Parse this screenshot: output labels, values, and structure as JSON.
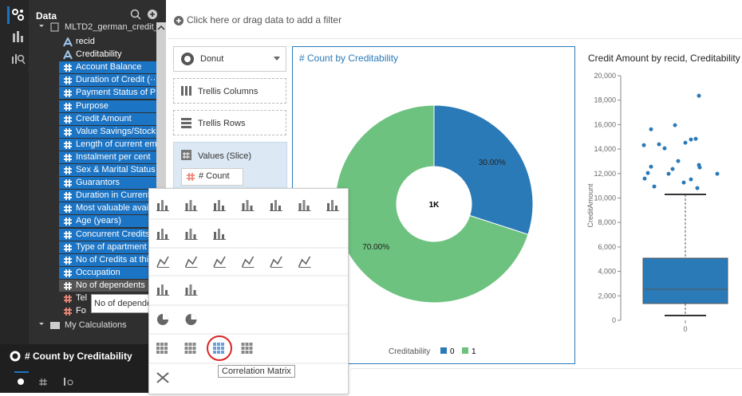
{
  "sidebar": {
    "title": "Data",
    "dataset": "MLTD2_german_credit_···",
    "attributes": [
      "recid",
      "Creditability"
    ],
    "selected_measures": [
      "Account Balance",
      "Duration of Credit (···",
      "Payment Status of P···",
      "Purpose",
      "Credit Amount",
      "Value Savings/Stocks",
      "Length of current em···",
      "Instalment per cent",
      "Sex & Marital Status",
      "Guarantors",
      "Duration in Current a",
      "Most valuable availa·",
      "Age (years)",
      "Concurrent Credits",
      "Type of apartment",
      "No of Credits at this ·",
      "Occupation"
    ],
    "hovered_item": "No of dependents",
    "other_items": [
      "Tel",
      "Fo"
    ],
    "folder": "My Calculations",
    "tooltip": "No of dependents",
    "panel_title": "# Count by Creditability"
  },
  "filter_bar": {
    "text": "Click here or drag data to add a filter"
  },
  "grammar": {
    "chart_type": "Donut",
    "trellis_columns": "Trellis Columns",
    "trellis_rows": "Trellis Rows",
    "values_title": "Values (Slice)",
    "values_item": "# Count"
  },
  "menu": {
    "tooltip": "Correlation Matrix"
  },
  "donut": {
    "type": "pie",
    "title": "# Count by Creditability",
    "center_label": "1K",
    "categories": [
      "0",
      "1"
    ],
    "values": [
      30,
      70
    ],
    "value_labels": [
      "30.00%",
      "70.00%"
    ],
    "colors": [
      "#2a7ab8",
      "#6cc27e"
    ],
    "legend_title": "Creditability"
  },
  "boxplot": {
    "type": "box",
    "title": "Credit Amount by recid, Creditability",
    "y_label": "CreditAmount",
    "categories": [
      "0"
    ],
    "color": "#2a7ab8",
    "ylim": [
      0,
      20000
    ],
    "yticks": [
      0,
      {
        "value": 2000,
        "label": "2,000"
      },
      {
        "value": 4000,
        "label": "4,000"
      },
      {
        "value": 6000,
        "label": "6,000"
      },
      {
        "value": 8000,
        "label": "8,000"
      },
      {
        "value": 10000,
        "label": "10,000"
      },
      {
        "value": 12000,
        "label": "12,000"
      },
      {
        "value": 14000,
        "label": "14,000"
      },
      {
        "value": 16000,
        "label": "16,000"
      },
      {
        "value": 18000,
        "label": "18,000"
      },
      {
        "value": 20000,
        "label": "20,000"
      }
    ],
    "box": {
      "whisker_low": 390,
      "q1": 1370,
      "median": 2540,
      "q3": 5080,
      "whisker_high": 10290
    },
    "outliers": [
      14320,
      15620,
      14390,
      14060,
      14520,
      14780,
      14840,
      15950,
      18360,
      12040,
      11590,
      12560,
      10940,
      11980,
      12370,
      13020,
      11260,
      11520,
      10810,
      12700,
      12500,
      11980
    ]
  }
}
